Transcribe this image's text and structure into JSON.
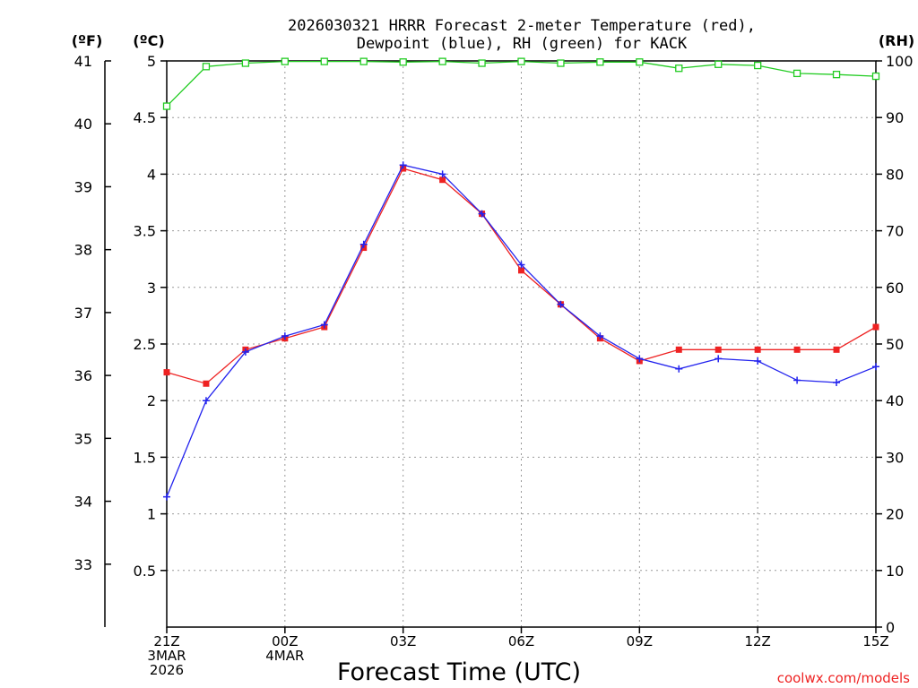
{
  "chart_data": {
    "type": "line",
    "title_line1": "2026030321 HRRR Forecast 2-meter Temperature (red),",
    "title_line2": "Dewpoint (blue), RH (green) for KACK",
    "xlabel": "Forecast Time (UTC)",
    "credit": "coolwx.com/models",
    "unit_f": "(ºF)",
    "unit_c": "(ºC)",
    "unit_rh": "(RH)",
    "hours": [
      0,
      1,
      2,
      3,
      4,
      5,
      6,
      7,
      8,
      9,
      10,
      11,
      12,
      13,
      14,
      15,
      16,
      17,
      18
    ],
    "x_ticks": [
      {
        "hour": 0,
        "lines": [
          "21Z",
          "3MAR",
          "2026"
        ]
      },
      {
        "hour": 3,
        "lines": [
          "00Z",
          "4MAR"
        ]
      },
      {
        "hour": 6,
        "lines": [
          "03Z"
        ]
      },
      {
        "hour": 9,
        "lines": [
          "06Z"
        ]
      },
      {
        "hour": 12,
        "lines": [
          "09Z"
        ]
      },
      {
        "hour": 15,
        "lines": [
          "12Z"
        ]
      },
      {
        "hour": 18,
        "lines": [
          "15Z"
        ]
      }
    ],
    "ylim_c": [
      0.0,
      5.0
    ],
    "yticks_c": [
      0.5,
      1,
      1.5,
      2,
      2.5,
      3,
      3.5,
      4,
      4.5,
      5
    ],
    "ylim_f": [
      32.0,
      41.0
    ],
    "yticks_f": [
      33,
      34,
      35,
      36,
      37,
      38,
      39,
      40,
      41
    ],
    "ylim_rh": [
      0,
      100
    ],
    "yticks_rh": [
      0,
      10,
      20,
      30,
      40,
      50,
      60,
      70,
      80,
      90,
      100
    ],
    "grid": true,
    "series": [
      {
        "name": "Temperature",
        "axis": "c",
        "color": "#ee2222",
        "marker": "square",
        "values": [
          2.25,
          2.15,
          2.45,
          2.55,
          2.65,
          3.35,
          4.05,
          3.95,
          3.65,
          3.15,
          2.85,
          2.55,
          2.35,
          2.45,
          2.45,
          2.45,
          2.45,
          2.45,
          2.65
        ]
      },
      {
        "name": "Dewpoint",
        "axis": "c",
        "color": "#2222ee",
        "marker": "plus",
        "values": [
          1.15,
          2.0,
          2.43,
          2.57,
          2.67,
          3.38,
          4.08,
          4.0,
          3.65,
          3.2,
          2.85,
          2.57,
          2.37,
          2.28,
          2.37,
          2.35,
          2.18,
          2.16,
          2.3
        ]
      },
      {
        "name": "RH",
        "axis": "rh",
        "color": "#22cc22",
        "marker": "open-square",
        "values": [
          92,
          99,
          99.6,
          99.9,
          99.9,
          99.9,
          99.8,
          99.9,
          99.6,
          99.9,
          99.6,
          99.8,
          99.8,
          98.7,
          99.4,
          99.2,
          97.8,
          97.6,
          97.3
        ]
      }
    ]
  }
}
